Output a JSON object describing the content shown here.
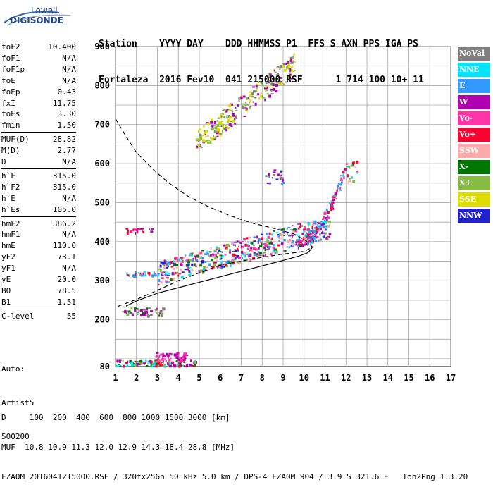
{
  "logo": {
    "line1": "Lowell",
    "line2": "DIGISONDE"
  },
  "header": {
    "line1": "Station    YYYY DAY    DDD HHMMSS P1  FFS S AXN PPS IGA PS",
    "line2": "Fortaleza  2016 Fev10  041 215000 RSF      1 714 100 10+ 11"
  },
  "params_groups": [
    [
      [
        "foF2",
        "10.400"
      ],
      [
        "foF1",
        "N/A"
      ],
      [
        "foF1p",
        "N/A"
      ],
      [
        "foE",
        "N/A"
      ],
      [
        "foEp",
        "0.43"
      ],
      [
        "fxI",
        "11.75"
      ],
      [
        "foEs",
        "3.30"
      ],
      [
        "fmin",
        "1.50"
      ]
    ],
    [
      [
        "MUF(D)",
        "28.82"
      ],
      [
        "M(D)",
        "2.77"
      ],
      [
        "D",
        "N/A"
      ]
    ],
    [
      [
        "h`F",
        "315.0"
      ],
      [
        "h`F2",
        "315.0"
      ],
      [
        "h`E",
        "N/A"
      ],
      [
        "h`Es",
        "105.0"
      ]
    ],
    [
      [
        "hmF2",
        "386.2"
      ],
      [
        "hmF1",
        "N/A"
      ],
      [
        "hmE",
        "110.0"
      ],
      [
        "yF2",
        "73.1"
      ],
      [
        "yF1",
        "N/A"
      ],
      [
        "yE",
        "20.0"
      ],
      [
        "B0",
        "78.5"
      ],
      [
        "B1",
        "1.51"
      ]
    ],
    [
      [
        "C-level",
        "55"
      ]
    ]
  ],
  "auto": {
    "line1": "Auto:",
    "line2": "Artist5",
    "line3": "500200"
  },
  "legend": [
    {
      "label": "NoVal",
      "color": "#808080"
    },
    {
      "label": "NNE",
      "color": "#00e5ff"
    },
    {
      "label": "E",
      "color": "#3399ff"
    },
    {
      "label": "W",
      "color": "#b000b0"
    },
    {
      "label": "Vo-",
      "color": "#ff33aa"
    },
    {
      "label": "Vo+",
      "color": "#ff0030"
    },
    {
      "label": "SSW",
      "color": "#ffaaaa"
    },
    {
      "label": "X-",
      "color": "#007700"
    },
    {
      "label": "X+",
      "color": "#88bb44"
    },
    {
      "label": "SSE",
      "color": "#dddd00"
    },
    {
      "label": "NNW",
      "color": "#2222cc"
    }
  ],
  "footer": {
    "line1": "D     100  200  400  600  800 1000 1500 3000 [km]",
    "line2": "MUF  10.8 10.9 11.3 12.0 12.9 14.3 18.4 28.8 [MHz]",
    "line3": "FZA0M_2016041215000.RSF / 320fx256h 50 kHz 5.0 km / DPS-4 FZA0M 904 / 3.9 S 321.6 E   Ion2Png 1.3.20"
  },
  "chart_data": {
    "type": "scatter",
    "xlim": [
      1,
      17
    ],
    "ylim": [
      80,
      900
    ],
    "x_ticks": [
      "1",
      "2",
      "3",
      "4",
      "5",
      "6",
      "7",
      "8",
      "9",
      "10",
      "11",
      "12",
      "13",
      "14",
      "15",
      "16",
      "17"
    ],
    "y_ticks": [
      "80",
      "200",
      "300",
      "400",
      "500",
      "600",
      "700",
      "800",
      "900"
    ],
    "grid": true,
    "profile_solid": [
      [
        1.5,
        235
      ],
      [
        2,
        248
      ],
      [
        3,
        268
      ],
      [
        4,
        282
      ],
      [
        5,
        296
      ],
      [
        6,
        310
      ],
      [
        7,
        324
      ],
      [
        8,
        338
      ],
      [
        9,
        352
      ],
      [
        9.8,
        364
      ],
      [
        10.2,
        372
      ],
      [
        10.4,
        386
      ]
    ],
    "profile_dashed": [
      [
        1,
        715
      ],
      [
        1.5,
        670
      ],
      [
        2,
        628
      ],
      [
        2.8,
        585
      ],
      [
        3.5,
        552
      ],
      [
        4.5,
        515
      ],
      [
        5.5,
        488
      ],
      [
        6.5,
        466
      ],
      [
        7.5,
        448
      ],
      [
        8.5,
        435
      ],
      [
        9.5,
        420
      ],
      [
        10.1,
        402
      ],
      [
        10.4,
        386
      ],
      [
        10,
        375
      ],
      [
        9,
        368
      ],
      [
        8,
        360
      ],
      [
        7,
        350
      ],
      [
        6,
        340
      ],
      [
        5,
        320
      ],
      [
        4,
        300
      ],
      [
        3,
        275
      ],
      [
        2,
        252
      ],
      [
        1,
        232
      ]
    ],
    "clusters": [
      {
        "x": [
          1.0,
          4.8
        ],
        "y": [
          82,
          98
        ],
        "n": 120,
        "colors": [
          "W",
          "X-",
          "Vo+",
          "X+",
          "NNE"
        ]
      },
      {
        "x": [
          2.9,
          4.4
        ],
        "y": [
          98,
          118
        ],
        "n": 60,
        "colors": [
          "W",
          "Vo-"
        ]
      },
      {
        "x": [
          1.3,
          3.3
        ],
        "y": [
          212,
          232
        ],
        "n": 50,
        "colors": [
          "X+",
          "W",
          "NoVal",
          "X-"
        ]
      },
      {
        "x": [
          1.5,
          3.5
        ],
        "y": [
          315,
          325
        ],
        "n": 40,
        "colors": [
          "W",
          "Vo+",
          "NNE",
          "E"
        ]
      },
      {
        "x": [
          3.0,
          11.2
        ],
        "y": [
          320,
          490
        ],
        "n": 500,
        "colors": [
          "W",
          "Vo+",
          "Vo-",
          "NNE",
          "E",
          "X-",
          "X+",
          "SSW",
          "NNW"
        ]
      },
      {
        "x": [
          1.4,
          2.7
        ],
        "y": [
          425,
          435
        ],
        "n": 20,
        "colors": [
          "Vo+",
          "Vo-",
          "W"
        ]
      },
      {
        "x": [
          9.6,
          12.0
        ],
        "y": [
          400,
          600
        ],
        "n": 120,
        "colors": [
          "Vo+",
          "Vo-",
          "W",
          "NNE",
          "E"
        ]
      },
      {
        "x": [
          12.0,
          12.5
        ],
        "y": [
          555,
          610
        ],
        "n": 20,
        "colors": [
          "X+",
          "Vo+",
          "NNE",
          "SSW"
        ]
      },
      {
        "x": [
          8.0,
          9.0
        ],
        "y": [
          548,
          585
        ],
        "n": 20,
        "colors": [
          "W",
          "NNW",
          "NoVal",
          "E"
        ]
      },
      {
        "x": [
          4.8,
          9.5
        ],
        "y": [
          655,
          860
        ],
        "n": 260,
        "colors": [
          "SSE",
          "W",
          "NoVal",
          "X+"
        ]
      }
    ]
  }
}
